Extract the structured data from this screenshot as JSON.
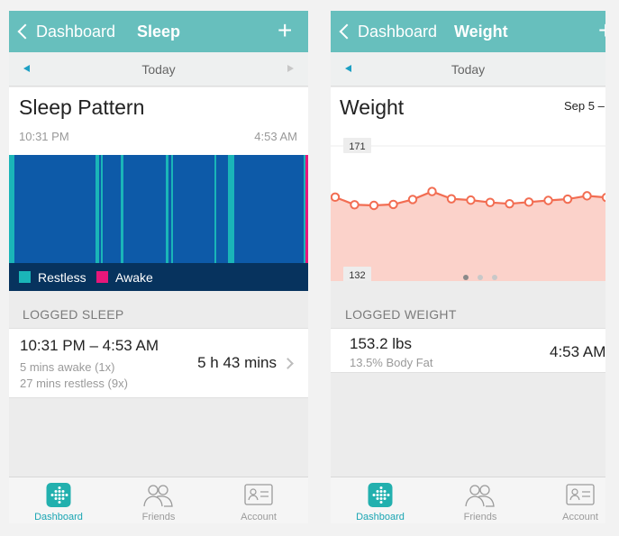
{
  "sleep_screen": {
    "nav": {
      "back_label": "Dashboard",
      "title": "Sleep",
      "add_symbol": "+"
    },
    "date_label": "Today",
    "card_title": "Sleep Pattern",
    "start_time": "10:31 PM",
    "end_time": "4:53 AM",
    "colors": {
      "asleep": "#0d5aa8",
      "restless": "#1ab5b8",
      "awake": "#e6177a"
    },
    "pattern_segments": [
      {
        "state": "restless",
        "start": 0.0,
        "end": 0.017
      },
      {
        "state": "restless",
        "start": 0.29,
        "end": 0.3
      },
      {
        "state": "restless",
        "start": 0.307,
        "end": 0.313
      },
      {
        "state": "restless",
        "start": 0.373,
        "end": 0.383
      },
      {
        "state": "restless",
        "start": 0.524,
        "end": 0.534
      },
      {
        "state": "restless",
        "start": 0.542,
        "end": 0.549
      },
      {
        "state": "restless",
        "start": 0.687,
        "end": 0.693
      },
      {
        "state": "restless",
        "start": 0.732,
        "end": 0.753
      },
      {
        "state": "restless",
        "start": 0.985,
        "end": 0.991
      },
      {
        "state": "awake",
        "start": 0.991,
        "end": 1.0
      }
    ],
    "legend": [
      {
        "label": "Restless",
        "color": "#1ab5b8"
      },
      {
        "label": "Awake",
        "color": "#e6177a"
      }
    ],
    "logged_header": "LOGGED SLEEP",
    "log_entry": {
      "time_range": "10:31 PM – 4:53 AM",
      "awake_detail": "5 mins awake (1x)",
      "restless_detail": "27 mins restless (9x)",
      "duration": "5 h 43 mins"
    }
  },
  "weight_screen": {
    "nav": {
      "back_label": "Dashboard",
      "title": "Weight"
    },
    "date_label": "Today",
    "card_title": "Weight",
    "date_range": "Sep 5 –",
    "chart_data": {
      "type": "line",
      "ylim": [
        132,
        171
      ],
      "y_tick_labels": [
        "171",
        "132"
      ],
      "values": [
        155.5,
        153.2,
        153.0,
        153.3,
        154.8,
        157.2,
        155.0,
        154.6,
        153.9,
        153.5,
        154.0,
        154.5,
        154.9,
        155.9,
        155.4
      ],
      "line_color": "#f26d52",
      "fill_color": "#fbd2ca",
      "page_count": 3,
      "active_page": 1
    },
    "logged_header": "LOGGED WEIGHT",
    "log_entry": {
      "weight": "153.2 lbs",
      "body_fat": "13.5% Body Fat",
      "time": "4:53 AM"
    }
  },
  "tab_bar": {
    "tabs": [
      {
        "label": "Dashboard",
        "icon": "dashboard-icon",
        "active": true
      },
      {
        "label": "Friends",
        "icon": "friends-icon",
        "active": false
      },
      {
        "label": "Account",
        "icon": "account-card-icon",
        "active": false
      }
    ]
  }
}
